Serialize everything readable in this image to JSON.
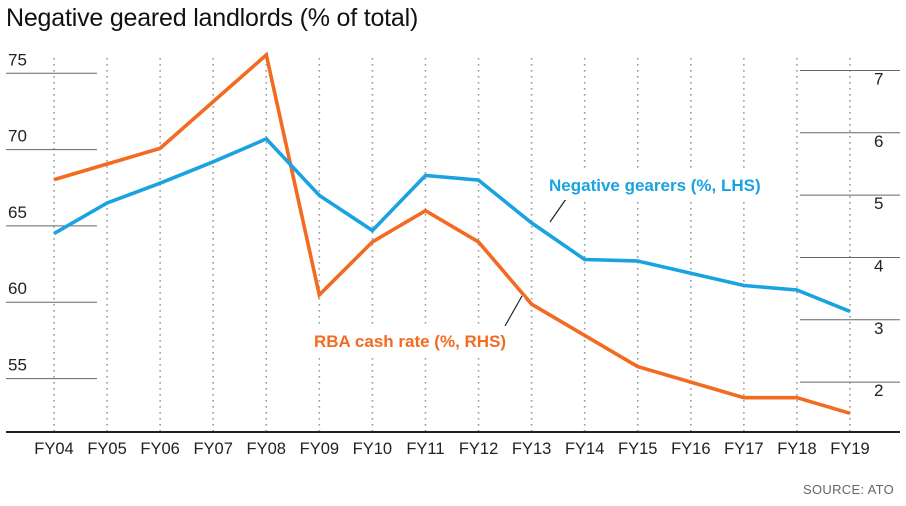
{
  "chart_data": {
    "type": "line",
    "title": "Negative geared landlords (% of total)",
    "source": "SOURCE: ATO",
    "categories": [
      "FY04",
      "FY05",
      "FY06",
      "FY07",
      "FY08",
      "FY09",
      "FY10",
      "FY11",
      "FY12",
      "FY13",
      "FY14",
      "FY15",
      "FY16",
      "FY17",
      "FY18",
      "FY19"
    ],
    "y_left": {
      "min": 51.5,
      "max": 76,
      "ticks": [
        55,
        60,
        65,
        70,
        75
      ]
    },
    "y_right": {
      "min": 1.2,
      "max": 7.2,
      "ticks": [
        2,
        3,
        4,
        5,
        6,
        7
      ]
    },
    "series": [
      {
        "name": "Negative gearers (%, LHS)",
        "axis": "left",
        "color": "#1aa3e0",
        "values": [
          64.5,
          66.5,
          67.8,
          69.2,
          70.7,
          67.0,
          64.7,
          68.3,
          68.0,
          65.2,
          62.8,
          62.7,
          61.9,
          61.1,
          60.8,
          59.4
        ]
      },
      {
        "name": "RBA cash rate (%, RHS)",
        "axis": "right",
        "color": "#f26b21",
        "values": [
          5.25,
          5.5,
          5.75,
          6.5,
          7.25,
          3.4,
          4.25,
          4.75,
          4.25,
          3.25,
          2.75,
          2.25,
          2.0,
          1.75,
          1.75,
          1.5
        ]
      }
    ]
  }
}
